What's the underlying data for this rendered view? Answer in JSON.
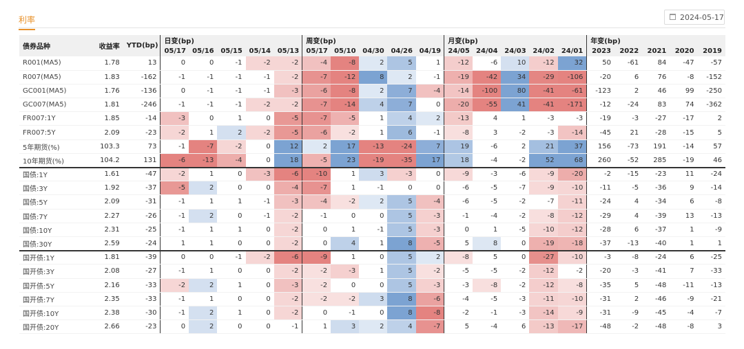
{
  "tab": "利率",
  "date": "2024-05-17",
  "header": {
    "name_col": "债券品种",
    "yield_col": "收益率",
    "ytd_col": "YTD(bp)",
    "groups": [
      "日变(bp)",
      "周变(bp)",
      "月变(bp)",
      "年变(bp)"
    ],
    "daily": [
      "05/17",
      "05/16",
      "05/15",
      "05/14",
      "05/13"
    ],
    "weekly": [
      "05/17",
      "05/10",
      "04/30",
      "04/26",
      "04/19"
    ],
    "monthly": [
      "24/05",
      "24/04",
      "24/03",
      "24/02",
      "24/01"
    ],
    "yearly": [
      "2023",
      "2022",
      "2021",
      "2020",
      "2019"
    ]
  },
  "colors": {
    "red": "#d9534f",
    "blue": "#4a7fc1",
    "accent": "#e8912a"
  },
  "rows": [
    {
      "name": "R001(MA5)",
      "yield": "1.78",
      "ytd": "13",
      "daily": [
        "0",
        "0",
        "-1",
        "-2",
        "-2"
      ],
      "weekly": [
        "-4",
        "-8",
        "2",
        "5",
        "1"
      ],
      "monthly": [
        "-12",
        "-6",
        "10",
        "-12",
        "32"
      ],
      "yearly": [
        "50",
        "-61",
        "84",
        "-47",
        "-57"
      ]
    },
    {
      "name": "R007(MA5)",
      "yield": "1.83",
      "ytd": "-162",
      "daily": [
        "-1",
        "-1",
        "-1",
        "-1",
        "-2"
      ],
      "weekly": [
        "-7",
        "-12",
        "8",
        "2",
        "-1"
      ],
      "monthly": [
        "-19",
        "-42",
        "34",
        "-29",
        "-106"
      ],
      "yearly": [
        "-20",
        "6",
        "76",
        "-8",
        "-152"
      ]
    },
    {
      "name": "GC001(MA5)",
      "yield": "1.76",
      "ytd": "-136",
      "daily": [
        "0",
        "-1",
        "-1",
        "-1",
        "-3"
      ],
      "weekly": [
        "-6",
        "-8",
        "2",
        "7",
        "-4"
      ],
      "monthly": [
        "-14",
        "-100",
        "80",
        "-41",
        "-61"
      ],
      "yearly": [
        "-123",
        "2",
        "46",
        "99",
        "-250"
      ]
    },
    {
      "name": "GC007(MA5)",
      "yield": "1.81",
      "ytd": "-246",
      "daily": [
        "-1",
        "-1",
        "-1",
        "-2",
        "-2"
      ],
      "weekly": [
        "-7",
        "-14",
        "4",
        "7",
        "0"
      ],
      "monthly": [
        "-20",
        "-55",
        "41",
        "-41",
        "-171"
      ],
      "yearly": [
        "-12",
        "-24",
        "83",
        "74",
        "-362"
      ]
    },
    {
      "name": "FR007:1Y",
      "yield": "1.85",
      "ytd": "-14",
      "daily": [
        "-3",
        "0",
        "1",
        "0",
        "-5"
      ],
      "weekly": [
        "-7",
        "-5",
        "1",
        "4",
        "2"
      ],
      "monthly": [
        "-13",
        "4",
        "1",
        "-3",
        "-3"
      ],
      "yearly": [
        "-19",
        "-3",
        "-27",
        "-17",
        "2"
      ]
    },
    {
      "name": "FR007:5Y",
      "yield": "2.09",
      "ytd": "-23",
      "daily": [
        "-2",
        "1",
        "2",
        "-2",
        "-5"
      ],
      "weekly": [
        "-6",
        "-2",
        "1",
        "6",
        "-1"
      ],
      "monthly": [
        "-8",
        "3",
        "-2",
        "-3",
        "-14"
      ],
      "yearly": [
        "-45",
        "21",
        "-28",
        "-15",
        "5"
      ]
    },
    {
      "name": "5年期货(%)",
      "yield": "103.3",
      "ytd": "73",
      "daily": [
        "-1",
        "-7",
        "-2",
        "0",
        "12"
      ],
      "weekly": [
        "2",
        "17",
        "-13",
        "-24",
        "7"
      ],
      "monthly": [
        "19",
        "-6",
        "2",
        "21",
        "37"
      ],
      "yearly": [
        "156",
        "-73",
        "191",
        "-14",
        "57"
      ]
    },
    {
      "name": "10年期货(%)",
      "yield": "104.2",
      "ytd": "131",
      "daily": [
        "-6",
        "-13",
        "-4",
        "0",
        "18"
      ],
      "weekly": [
        "-5",
        "23",
        "-19",
        "-35",
        "17"
      ],
      "monthly": [
        "18",
        "-4",
        "-2",
        "52",
        "68"
      ],
      "yearly": [
        "260",
        "-52",
        "285",
        "-19",
        "46"
      ]
    },
    {
      "name": "国债:1Y",
      "yield": "1.61",
      "ytd": "-47",
      "daily": [
        "-2",
        "1",
        "0",
        "-3",
        "-6"
      ],
      "weekly": [
        "-10",
        "1",
        "3",
        "-3",
        "0"
      ],
      "monthly": [
        "-9",
        "-3",
        "-6",
        "-9",
        "-20"
      ],
      "yearly": [
        "-2",
        "-15",
        "-23",
        "11",
        "-24"
      ]
    },
    {
      "name": "国债:3Y",
      "yield": "1.92",
      "ytd": "-37",
      "daily": [
        "-5",
        "2",
        "0",
        "0",
        "-4"
      ],
      "weekly": [
        "-7",
        "1",
        "-1",
        "0",
        "0"
      ],
      "monthly": [
        "-6",
        "-5",
        "-7",
        "-9",
        "-10"
      ],
      "yearly": [
        "-11",
        "-5",
        "-36",
        "9",
        "-14"
      ]
    },
    {
      "name": "国债:5Y",
      "yield": "2.09",
      "ytd": "-31",
      "daily": [
        "-1",
        "1",
        "1",
        "-1",
        "-3"
      ],
      "weekly": [
        "-4",
        "-2",
        "2",
        "5",
        "-4"
      ],
      "monthly": [
        "-6",
        "-5",
        "-2",
        "-7",
        "-11"
      ],
      "yearly": [
        "-24",
        "4",
        "-34",
        "6",
        "-8"
      ]
    },
    {
      "name": "国债:7Y",
      "yield": "2.27",
      "ytd": "-26",
      "daily": [
        "-1",
        "2",
        "0",
        "-1",
        "-2"
      ],
      "weekly": [
        "-1",
        "0",
        "0",
        "5",
        "-3"
      ],
      "monthly": [
        "-1",
        "-4",
        "-2",
        "-8",
        "-12"
      ],
      "yearly": [
        "-29",
        "4",
        "-39",
        "13",
        "-13"
      ]
    },
    {
      "name": "国债:10Y",
      "yield": "2.31",
      "ytd": "-25",
      "daily": [
        "-1",
        "1",
        "1",
        "0",
        "-2"
      ],
      "weekly": [
        "0",
        "1",
        "-1",
        "5",
        "-3"
      ],
      "monthly": [
        "0",
        "1",
        "-5",
        "-10",
        "-12"
      ],
      "yearly": [
        "-28",
        "6",
        "-37",
        "1",
        "-9"
      ]
    },
    {
      "name": "国债:30Y",
      "yield": "2.59",
      "ytd": "-24",
      "daily": [
        "1",
        "1",
        "0",
        "0",
        "-2"
      ],
      "weekly": [
        "0",
        "4",
        "1",
        "8",
        "-5"
      ],
      "monthly": [
        "5",
        "8",
        "0",
        "-19",
        "-18"
      ],
      "yearly": [
        "-37",
        "-13",
        "-40",
        "1",
        "1"
      ]
    },
    {
      "name": "国开债:1Y",
      "yield": "1.81",
      "ytd": "-39",
      "daily": [
        "0",
        "0",
        "-1",
        "-2",
        "-6"
      ],
      "weekly": [
        "-9",
        "1",
        "0",
        "5",
        "2"
      ],
      "monthly": [
        "-8",
        "5",
        "0",
        "-27",
        "-10"
      ],
      "yearly": [
        "-3",
        "-8",
        "-24",
        "6",
        "-25"
      ]
    },
    {
      "name": "国开债:3Y",
      "yield": "2.08",
      "ytd": "-27",
      "daily": [
        "-1",
        "1",
        "0",
        "0",
        "-2"
      ],
      "weekly": [
        "-2",
        "-3",
        "1",
        "5",
        "-2"
      ],
      "monthly": [
        "-5",
        "-5",
        "-2",
        "-12",
        "-2"
      ],
      "yearly": [
        "-20",
        "-3",
        "-41",
        "7",
        "-33"
      ]
    },
    {
      "name": "国开债:5Y",
      "yield": "2.16",
      "ytd": "-33",
      "daily": [
        "-2",
        "2",
        "1",
        "0",
        "-3"
      ],
      "weekly": [
        "-2",
        "0",
        "0",
        "5",
        "-3"
      ],
      "monthly": [
        "-3",
        "-8",
        "-2",
        "-12",
        "-8"
      ],
      "yearly": [
        "-35",
        "5",
        "-48",
        "-11",
        "-13"
      ]
    },
    {
      "name": "国开债:7Y",
      "yield": "2.35",
      "ytd": "-33",
      "daily": [
        "-1",
        "1",
        "0",
        "0",
        "-2"
      ],
      "weekly": [
        "-2",
        "-2",
        "3",
        "8",
        "-6"
      ],
      "monthly": [
        "-4",
        "-5",
        "-3",
        "-11",
        "-10"
      ],
      "yearly": [
        "-31",
        "2",
        "-46",
        "-9",
        "-21"
      ]
    },
    {
      "name": "国开债:10Y",
      "yield": "2.38",
      "ytd": "-30",
      "daily": [
        "-1",
        "2",
        "1",
        "0",
        "-2"
      ],
      "weekly": [
        "0",
        "-1",
        "0",
        "8",
        "-8"
      ],
      "monthly": [
        "-2",
        "-1",
        "-3",
        "-14",
        "-9"
      ],
      "yearly": [
        "-31",
        "-9",
        "-45",
        "-4",
        "-7"
      ]
    },
    {
      "name": "国开债:20Y",
      "yield": "2.66",
      "ytd": "-23",
      "daily": [
        "0",
        "2",
        "0",
        "0",
        "-1"
      ],
      "weekly": [
        "1",
        "3",
        "2",
        "4",
        "-7"
      ],
      "monthly": [
        "5",
        "-4",
        "6",
        "-13",
        "-17"
      ],
      "yearly": [
        "-48",
        "-2",
        "-48",
        "-8",
        "3"
      ]
    }
  ]
}
